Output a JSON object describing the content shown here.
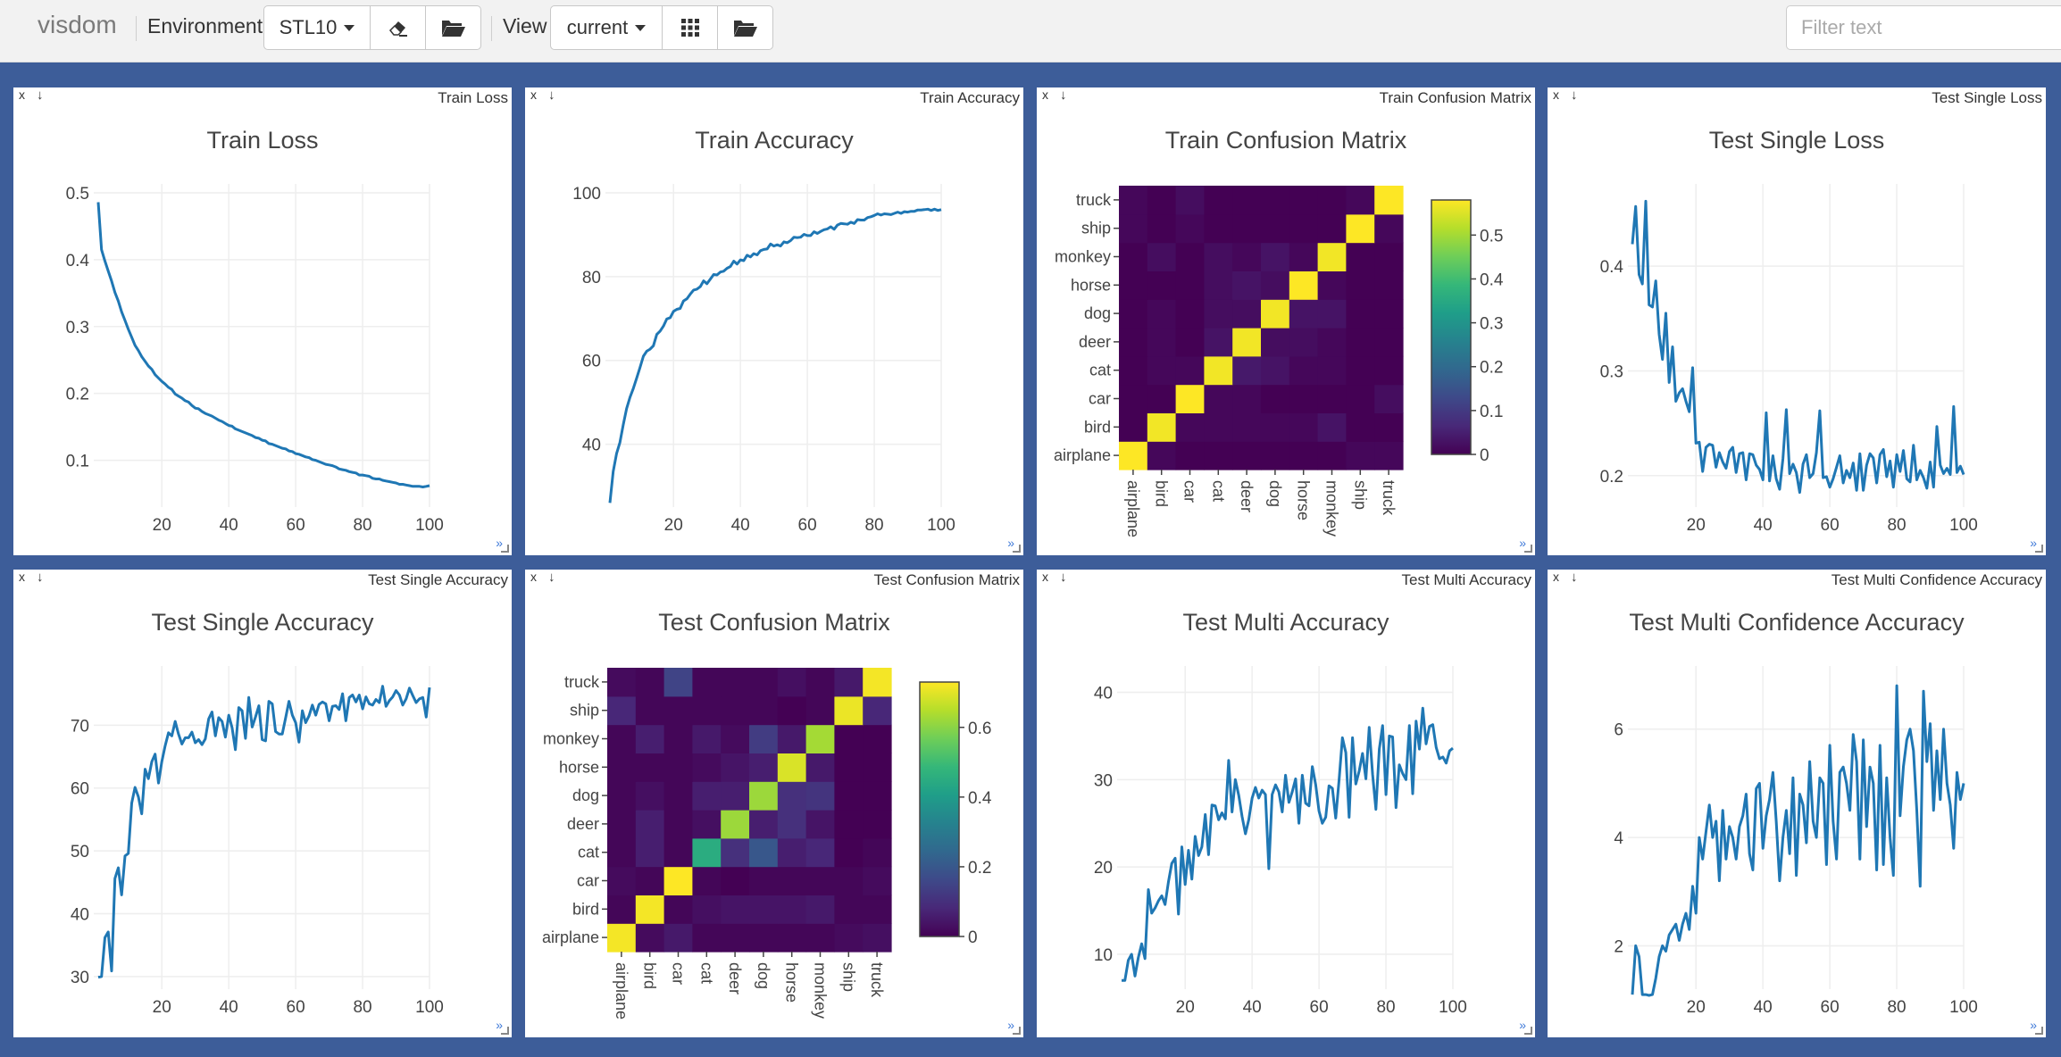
{
  "app": {
    "brand": "visdom",
    "environment_label": "Environment",
    "environment_value": "STL10",
    "view_label": "View",
    "view_value": "current",
    "filter_placeholder": "Filter text",
    "icons": {
      "clear": "eraser-icon",
      "open_env": "folder-open-icon",
      "grid": "grid-icon",
      "open_view": "folder-open-icon"
    }
  },
  "colors": {
    "workspace_bg": "#3d5d99",
    "line": "#1f77b4",
    "grid": "#eeeeee",
    "viridis": [
      "#440154",
      "#482878",
      "#3e4989",
      "#31688e",
      "#26828e",
      "#1f9e89",
      "#35b779",
      "#6ece58",
      "#b5de2b",
      "#fde725"
    ]
  },
  "panes": [
    {
      "label": "Train Loss",
      "close": "x",
      "down": "↓",
      "expand": "»",
      "chart_data": {
        "type": "line",
        "title": "Train Loss",
        "xlabel": "",
        "ylabel": "",
        "xlim": [
          1,
          100
        ],
        "ylim": [
          0.03,
          0.5
        ],
        "xticks": [
          20,
          40,
          60,
          80,
          100
        ],
        "yticks": [
          0.1,
          0.2,
          0.3,
          0.4,
          0.5
        ],
        "grid": true,
        "x_start": 1,
        "values": [
          0.486,
          0.415,
          0.398,
          0.383,
          0.368,
          0.351,
          0.338,
          0.322,
          0.309,
          0.296,
          0.284,
          0.272,
          0.264,
          0.255,
          0.248,
          0.241,
          0.236,
          0.228,
          0.223,
          0.218,
          0.214,
          0.209,
          0.206,
          0.199,
          0.196,
          0.193,
          0.189,
          0.187,
          0.182,
          0.178,
          0.177,
          0.173,
          0.17,
          0.168,
          0.166,
          0.163,
          0.16,
          0.158,
          0.155,
          0.152,
          0.151,
          0.147,
          0.145,
          0.143,
          0.141,
          0.139,
          0.137,
          0.134,
          0.133,
          0.13,
          0.129,
          0.125,
          0.124,
          0.122,
          0.12,
          0.118,
          0.117,
          0.114,
          0.113,
          0.11,
          0.109,
          0.107,
          0.105,
          0.104,
          0.101,
          0.1,
          0.098,
          0.096,
          0.094,
          0.093,
          0.092,
          0.09,
          0.087,
          0.086,
          0.085,
          0.083,
          0.082,
          0.081,
          0.078,
          0.078,
          0.077,
          0.076,
          0.073,
          0.072,
          0.072,
          0.07,
          0.069,
          0.068,
          0.067,
          0.066,
          0.064,
          0.064,
          0.063,
          0.062,
          0.061,
          0.061,
          0.061,
          0.06,
          0.061,
          0.062
        ]
      }
    },
    {
      "label": "Train Accuracy",
      "close": "x",
      "down": "↓",
      "expand": "»",
      "chart_data": {
        "type": "line",
        "title": "Train Accuracy",
        "xlabel": "",
        "ylabel": "",
        "xlim": [
          1,
          100
        ],
        "ylim": [
          25,
          100
        ],
        "xticks": [
          20,
          40,
          60,
          80,
          100
        ],
        "yticks": [
          40,
          60,
          80,
          100
        ],
        "grid": true,
        "x_start": 1,
        "values": [
          26.0,
          33.5,
          37.8,
          40.4,
          44.7,
          48.5,
          51.2,
          53.3,
          55.8,
          58.3,
          61.0,
          62.2,
          62.7,
          63.5,
          66.2,
          67.0,
          68.2,
          69.9,
          70.2,
          71.7,
          72.2,
          72.4,
          74.2,
          74.7,
          75.8,
          76.8,
          77.0,
          77.6,
          79.0,
          78.3,
          79.4,
          80.5,
          80.4,
          81.1,
          81.3,
          82.0,
          82.4,
          83.7,
          83.0,
          84.0,
          83.8,
          85.1,
          84.7,
          85.5,
          85.2,
          86.2,
          86.5,
          86.6,
          87.8,
          87.3,
          87.6,
          87.3,
          88.3,
          88.1,
          88.6,
          89.4,
          89.3,
          89.4,
          90.1,
          89.8,
          89.8,
          90.7,
          90.3,
          90.8,
          91.2,
          91.4,
          91.9,
          91.3,
          92.3,
          92.7,
          92.6,
          92.5,
          93.0,
          92.7,
          93.6,
          93.5,
          93.5,
          94.1,
          94.3,
          94.6,
          95.0,
          94.7,
          95.0,
          94.9,
          94.8,
          95.1,
          95.4,
          95.1,
          95.5,
          95.4,
          95.6,
          95.6,
          95.9,
          95.9,
          96.0,
          96.1,
          95.8,
          96.1,
          95.8,
          96.0
        ]
      }
    },
    {
      "label": "Train Confusion Matrix",
      "close": "x",
      "down": "↓",
      "expand": "»",
      "chart_data": {
        "type": "heatmap",
        "title": "Train Confusion Matrix",
        "labels": [
          "airplane",
          "bird",
          "car",
          "cat",
          "deer",
          "dog",
          "horse",
          "monkey",
          "ship",
          "truck"
        ],
        "zmax": 0.58,
        "colorbar_ticks": [
          0,
          0.1,
          0.2,
          0.3,
          0.4,
          0.5
        ],
        "matrix": [
          [
            0.58,
            0.01,
            0.0,
            0.0,
            0.0,
            0.0,
            0.0,
            0.0,
            0.01,
            0.01
          ],
          [
            0.0,
            0.57,
            0.01,
            0.01,
            0.01,
            0.01,
            0.01,
            0.03,
            0.0,
            0.0
          ],
          [
            0.0,
            0.0,
            0.58,
            0.01,
            0.01,
            0.0,
            0.0,
            0.0,
            0.0,
            0.02
          ],
          [
            0.0,
            0.01,
            0.01,
            0.57,
            0.04,
            0.03,
            0.01,
            0.01,
            0.0,
            0.0
          ],
          [
            0.0,
            0.01,
            0.0,
            0.03,
            0.57,
            0.02,
            0.02,
            0.01,
            0.0,
            0.0
          ],
          [
            0.0,
            0.01,
            0.0,
            0.02,
            0.02,
            0.57,
            0.03,
            0.03,
            0.0,
            0.0
          ],
          [
            0.0,
            0.0,
            0.0,
            0.02,
            0.03,
            0.02,
            0.58,
            0.01,
            0.0,
            0.0
          ],
          [
            0.0,
            0.02,
            0.0,
            0.02,
            0.01,
            0.03,
            0.01,
            0.57,
            0.0,
            0.0
          ],
          [
            0.01,
            0.0,
            0.01,
            0.0,
            0.0,
            0.0,
            0.0,
            0.0,
            0.58,
            0.01
          ],
          [
            0.01,
            0.0,
            0.02,
            0.0,
            0.0,
            0.0,
            0.0,
            0.0,
            0.01,
            0.58
          ]
        ]
      }
    },
    {
      "label": "Test Single Loss",
      "close": "x",
      "down": "↓",
      "expand": "»",
      "chart_data": {
        "type": "line",
        "title": "Test Single Loss",
        "xlabel": "",
        "ylabel": "",
        "xlim": [
          1,
          100
        ],
        "ylim": [
          0.17,
          0.47
        ],
        "xticks": [
          20,
          40,
          60,
          80,
          100
        ],
        "yticks": [
          0.2,
          0.3,
          0.4
        ],
        "grid": true,
        "x_start": 1,
        "values": [
          0.421,
          0.457,
          0.392,
          0.383,
          0.462,
          0.363,
          0.361,
          0.386,
          0.335,
          0.311,
          0.355,
          0.289,
          0.323,
          0.271,
          0.279,
          0.283,
          0.271,
          0.261,
          0.303,
          0.231,
          0.232,
          0.204,
          0.227,
          0.23,
          0.229,
          0.208,
          0.222,
          0.213,
          0.207,
          0.223,
          0.227,
          0.203,
          0.221,
          0.222,
          0.196,
          0.221,
          0.22,
          0.21,
          0.206,
          0.196,
          0.26,
          0.195,
          0.219,
          0.197,
          0.187,
          0.216,
          0.263,
          0.202,
          0.211,
          0.203,
          0.184,
          0.211,
          0.22,
          0.198,
          0.202,
          0.222,
          0.262,
          0.198,
          0.199,
          0.189,
          0.197,
          0.208,
          0.219,
          0.193,
          0.205,
          0.198,
          0.212,
          0.186,
          0.221,
          0.186,
          0.21,
          0.221,
          0.217,
          0.193,
          0.22,
          0.225,
          0.199,
          0.214,
          0.189,
          0.22,
          0.204,
          0.224,
          0.197,
          0.194,
          0.229,
          0.196,
          0.205,
          0.198,
          0.188,
          0.213,
          0.189,
          0.247,
          0.21,
          0.202,
          0.207,
          0.201,
          0.266,
          0.203,
          0.209,
          0.201
        ]
      }
    },
    {
      "label": "Test Single Accuracy",
      "close": "x",
      "down": "↓",
      "expand": "»",
      "chart_data": {
        "type": "line",
        "title": "Test Single Accuracy",
        "xlabel": "",
        "ylabel": "",
        "xlim": [
          1,
          100
        ],
        "ylim": [
          28,
          78
        ],
        "xticks": [
          20,
          40,
          60,
          80,
          100
        ],
        "yticks": [
          30,
          40,
          50,
          60,
          70
        ],
        "grid": true,
        "x_start": 1,
        "values": [
          29.9,
          30.0,
          36.2,
          37.1,
          30.9,
          45.6,
          47.3,
          43.0,
          49.2,
          49.6,
          57.6,
          60.1,
          58.6,
          55.9,
          63.0,
          61.5,
          64.2,
          65.4,
          60.8,
          64.2,
          66.7,
          68.8,
          68.3,
          70.6,
          68.6,
          67.0,
          68.0,
          68.0,
          68.9,
          67.2,
          67.7,
          66.9,
          67.8,
          71.0,
          72.1,
          68.3,
          71.2,
          70.6,
          68.1,
          71.6,
          69.6,
          66.1,
          72.8,
          72.3,
          67.9,
          74.4,
          69.7,
          71.3,
          73.1,
          67.7,
          67.5,
          73.8,
          73.4,
          69.0,
          68.6,
          68.6,
          71.2,
          73.8,
          71.6,
          70.4,
          67.3,
          72.3,
          70.4,
          71.5,
          73.2,
          71.6,
          73.3,
          73.7,
          73.4,
          70.7,
          73.0,
          73.1,
          72.5,
          75.0,
          70.7,
          74.4,
          74.8,
          73.7,
          74.8,
          72.6,
          74.5,
          73.4,
          73.2,
          74.1,
          73.6,
          76.2,
          73.0,
          73.9,
          74.5,
          75.5,
          74.8,
          73.2,
          74.2,
          75.9,
          74.7,
          73.6,
          74.2,
          74.4,
          71.3,
          76.0
        ]
      }
    },
    {
      "label": "Test Confusion Matrix",
      "close": "x",
      "down": "↓",
      "expand": "»",
      "chart_data": {
        "type": "heatmap",
        "title": "Test Confusion Matrix",
        "labels": [
          "airplane",
          "bird",
          "car",
          "cat",
          "deer",
          "dog",
          "horse",
          "monkey",
          "ship",
          "truck"
        ],
        "zmax": 0.73,
        "colorbar_ticks": [
          0,
          0.2,
          0.4,
          0.6
        ],
        "matrix": [
          [
            0.72,
            0.02,
            0.05,
            0.01,
            0.01,
            0.01,
            0.01,
            0.01,
            0.02,
            0.03
          ],
          [
            0.01,
            0.72,
            0.01,
            0.03,
            0.04,
            0.04,
            0.04,
            0.05,
            0.01,
            0.01
          ],
          [
            0.02,
            0.01,
            0.73,
            0.01,
            0.0,
            0.01,
            0.01,
            0.01,
            0.01,
            0.02
          ],
          [
            0.01,
            0.06,
            0.01,
            0.45,
            0.1,
            0.2,
            0.06,
            0.08,
            0.0,
            0.01
          ],
          [
            0.01,
            0.06,
            0.01,
            0.03,
            0.62,
            0.06,
            0.1,
            0.04,
            0.0,
            0.0
          ],
          [
            0.01,
            0.03,
            0.01,
            0.06,
            0.06,
            0.62,
            0.1,
            0.11,
            0.0,
            0.0
          ],
          [
            0.01,
            0.01,
            0.01,
            0.02,
            0.04,
            0.06,
            0.69,
            0.05,
            0.0,
            0.0
          ],
          [
            0.01,
            0.06,
            0.01,
            0.05,
            0.02,
            0.13,
            0.05,
            0.63,
            0.0,
            0.0
          ],
          [
            0.08,
            0.01,
            0.01,
            0.01,
            0.01,
            0.01,
            0.0,
            0.01,
            0.71,
            0.08
          ],
          [
            0.02,
            0.01,
            0.15,
            0.01,
            0.01,
            0.01,
            0.03,
            0.01,
            0.05,
            0.72
          ]
        ]
      }
    },
    {
      "label": "Test Multi Accuracy",
      "close": "x",
      "down": "↓",
      "expand": "»",
      "chart_data": {
        "type": "line",
        "title": "Test Multi Accuracy",
        "xlabel": "",
        "ylabel": "",
        "xlim": [
          1,
          100
        ],
        "ylim": [
          6,
          42
        ],
        "xticks": [
          20,
          40,
          60,
          80,
          100
        ],
        "yticks": [
          10,
          20,
          30,
          40
        ],
        "grid": true,
        "x_start": 1,
        "values": [
          7.0,
          7.0,
          9.3,
          10.0,
          7.5,
          9.6,
          11.2,
          9.5,
          17.4,
          14.7,
          15.3,
          16.1,
          16.7,
          15.7,
          18.3,
          20.4,
          21.0,
          14.6,
          22.3,
          18.0,
          21.9,
          18.6,
          23.5,
          21.3,
          22.3,
          26.0,
          21.4,
          27.1,
          27.0,
          25.4,
          26.2,
          25.5,
          32.2,
          26.3,
          30.0,
          28.2,
          25.8,
          23.8,
          25.4,
          27.9,
          29.1,
          27.9,
          28.8,
          28.3,
          19.8,
          28.3,
          29.4,
          28.6,
          26.3,
          30.5,
          27.4,
          28.6,
          30.1,
          25.0,
          30.5,
          27.3,
          27.0,
          31.5,
          29.4,
          26.4,
          25.0,
          25.7,
          29.3,
          29.0,
          25.6,
          30.0,
          34.8,
          33.1,
          25.7,
          34.8,
          29.5,
          31.0,
          33.0,
          30.1,
          36.0,
          30.6,
          26.6,
          33.5,
          36.2,
          28.3,
          35.0,
          34.9,
          26.8,
          31.7,
          30.7,
          30.0,
          36.2,
          28.4,
          36.7,
          33.5,
          38.2,
          34.1,
          36.1,
          36.3,
          33.7,
          32.4,
          32.6,
          31.9,
          33.3,
          33.6
        ]
      }
    },
    {
      "label": "Test Multi Confidence Accuracy",
      "close": "x",
      "down": "↓",
      "expand": "»",
      "chart_data": {
        "type": "line",
        "title": "Test Multi Confidence Accuracy",
        "xlabel": "",
        "ylabel": "",
        "xlim": [
          1,
          100
        ],
        "ylim": [
          1.2,
          7
        ],
        "xticks": [
          20,
          40,
          60,
          80,
          100
        ],
        "yticks": [
          2,
          4,
          6
        ],
        "grid": true,
        "x_start": 1,
        "values": [
          1.1,
          2.0,
          1.8,
          1.1,
          1.1,
          1.0,
          1.1,
          1.4,
          1.8,
          2.0,
          1.9,
          2.2,
          2.3,
          2.4,
          2.1,
          2.4,
          2.6,
          2.3,
          3.1,
          2.6,
          4.0,
          3.6,
          4.1,
          4.6,
          4.0,
          4.3,
          3.2,
          4.5,
          3.6,
          4.2,
          4.0,
          3.6,
          4.2,
          4.4,
          4.8,
          3.7,
          3.4,
          4.9,
          5.0,
          3.8,
          4.4,
          4.7,
          5.2,
          4.3,
          3.2,
          4.0,
          4.5,
          3.7,
          5.1,
          3.3,
          4.8,
          4.6,
          3.9,
          5.4,
          4.3,
          4.0,
          5.1,
          5.0,
          3.5,
          5.7,
          4.3,
          3.6,
          5.2,
          5.3,
          5.0,
          4.5,
          5.9,
          5.4,
          3.6,
          5.8,
          4.2,
          5.3,
          5.0,
          3.4,
          5.7,
          3.5,
          5.1,
          4.0,
          3.3,
          6.8,
          4.4,
          5.3,
          5.8,
          6.0,
          5.6,
          4.5,
          3.1,
          6.7,
          5.4,
          6.1,
          4.5,
          5.6,
          4.7,
          6.0,
          5.0,
          4.6,
          3.8,
          5.2,
          4.7,
          5.0
        ]
      }
    }
  ]
}
